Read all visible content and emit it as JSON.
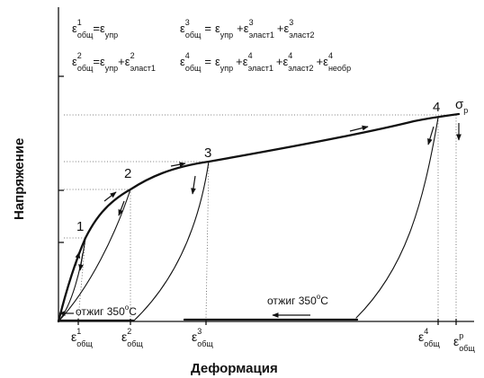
{
  "axes": {
    "y_title": "Напряжение",
    "x_title": "Деформация"
  },
  "equations": {
    "eq1_text": "ε¹общ=εупр",
    "eq2_text": "ε²общ=εупр+ε²эласт1",
    "eq3_text": "ε³общ = εупр +ε³эласт1 +ε³эласт2",
    "eq4_text": "ε⁴общ = εупр +ε⁴эласт1 +ε⁴эласт2 +ε⁴необр",
    "eps": "ε",
    "sup1": "1",
    "sup2": "2",
    "sup3": "3",
    "sup4": "4",
    "sub_total": "общ",
    "sub_elastic": "упр",
    "sub_el1": "эласт1",
    "sub_el2": "эласт2",
    "sub_irrev": "необр",
    "eq_sign": "=",
    "plus": "+"
  },
  "points": {
    "p1": "1",
    "p2": "2",
    "p3": "3",
    "p4": "4"
  },
  "sigma_label": "σ",
  "sigma_sub": "р",
  "anneal": {
    "left": "отжиг 350°C",
    "right": "отжиг 350°C",
    "prefix": "отжиг 350",
    "deg": "o",
    "unit": "C"
  },
  "x_ticks": {
    "sup1": "1",
    "sup2": "2",
    "sup3": "3",
    "sup4": "4",
    "sup_p": "р",
    "sub": "общ",
    "eps": "ε"
  }
}
